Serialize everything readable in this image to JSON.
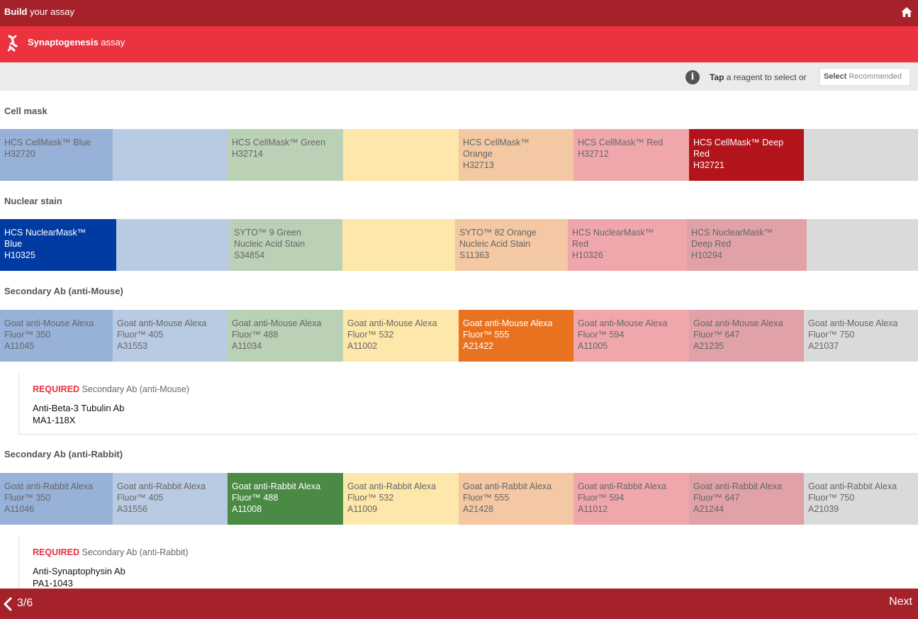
{
  "header": {
    "title_bold": "Build",
    "title_rest": "your assay",
    "home_icon": "home-icon"
  },
  "assay": {
    "icon": "dna-icon",
    "name_bold": "Synaptogenesis",
    "name_rest": "assay"
  },
  "instruction": {
    "icon": "info-icon",
    "info_glyph": "i",
    "tap_bold": "Tap",
    "tap_rest": "a reagent to select or",
    "select_bold": "Select",
    "select_rest": "Recommended"
  },
  "sections": [
    {
      "title": "Cell mask",
      "tiles": [
        {
          "lines": [
            "HCS CellMask™ Blue",
            "H32720"
          ],
          "color": "#97b1d8",
          "selected": false
        },
        {
          "lines": [],
          "color": "#b9cbe2",
          "selected": false
        },
        {
          "lines": [
            "HCS CellMask™ Green",
            "H32714"
          ],
          "color": "#bad1b5",
          "selected": false
        },
        {
          "lines": [],
          "color": "#fde7ab",
          "selected": false
        },
        {
          "lines": [
            "HCS CellMask™",
            "Orange",
            "H32713"
          ],
          "color": "#f3c8a2",
          "selected": false
        },
        {
          "lines": [
            "HCS CellMask™ Red",
            "H32712"
          ],
          "color": "#f0a7ac",
          "selected": false
        },
        {
          "lines": [
            "HCS CellMask™ Deep",
            "Red",
            "H32721"
          ],
          "color": "#b3141c",
          "selected": true
        },
        {
          "lines": [],
          "color": "#dadada",
          "selected": false
        }
      ]
    },
    {
      "title": "Nuclear stain",
      "tiles": [
        {
          "lines": [
            "HCS NuclearMask™",
            "Blue",
            "H10325"
          ],
          "color": "#003ba2",
          "selected": true
        },
        {
          "lines": [],
          "color": "#b9cbe2",
          "selected": false
        },
        {
          "lines": [
            "SYTO™ 9 Green",
            "Nucleic Acid Stain",
            "S34854"
          ],
          "color": "#bad1b5",
          "selected": false
        },
        {
          "lines": [],
          "color": "#fde7ab",
          "selected": false
        },
        {
          "lines": [
            "SYTO™ 82 Orange",
            "Nucleic Acid Stain",
            "S11363"
          ],
          "color": "#f3c8a2",
          "selected": false
        },
        {
          "lines": [
            "HCS NuclearMask™",
            "Red",
            "H10326"
          ],
          "color": "#f0a7ac",
          "selected": false
        },
        {
          "lines": [
            "HCS NuclearMask™",
            "Deep Red",
            "H10294"
          ],
          "color": "#e0a2a6",
          "selected": false
        },
        {
          "lines": [],
          "color": "#dadada",
          "selected": false
        }
      ]
    },
    {
      "title": "Secondary Ab (anti-Mouse)",
      "tiles": [
        {
          "lines": [
            "Goat anti-Mouse Alexa",
            "Fluor™ 350",
            "A11045"
          ],
          "color": "#97b1d8",
          "selected": false
        },
        {
          "lines": [
            "Goat anti-Mouse Alexa",
            "Fluor™ 405",
            "A31553"
          ],
          "color": "#b9cbe2",
          "selected": false
        },
        {
          "lines": [
            "Goat anti-Mouse Alexa",
            "Fluor™ 488",
            "A11034"
          ],
          "color": "#bad1b5",
          "selected": false
        },
        {
          "lines": [
            "Goat anti-Mouse Alexa",
            "Fluor™ 532",
            "A11002"
          ],
          "color": "#fde7ab",
          "selected": false
        },
        {
          "lines": [
            "Goat anti-Mouse Alexa",
            "Fluor™ 555",
            "A21422"
          ],
          "color": "#e97220",
          "selected": true
        },
        {
          "lines": [
            "Goat anti-Mouse Alexa",
            "Fluor™ 594",
            "A11005"
          ],
          "color": "#f0a7ac",
          "selected": false
        },
        {
          "lines": [
            "Goat anti-Mouse Alexa",
            "Fluor™ 647",
            "A21235"
          ],
          "color": "#e0a2a6",
          "selected": false
        },
        {
          "lines": [
            "Goat anti-Mouse Alexa",
            "Fluor™ 750",
            "A21037"
          ],
          "color": "#dadada",
          "selected": false
        }
      ]
    },
    {
      "title": "Secondary Ab (anti-Rabbit)",
      "tiles": [
        {
          "lines": [
            "Goat anti-Rabbit Alexa",
            "Fluor™ 350",
            "A11046"
          ],
          "color": "#97b1d8",
          "selected": false
        },
        {
          "lines": [
            "Goat anti-Rabbit Alexa",
            "Fluor™ 405",
            "A31556"
          ],
          "color": "#b9cbe2",
          "selected": false
        },
        {
          "lines": [
            "Goat anti-Rabbit Alexa",
            "Fluor™ 488",
            "A11008"
          ],
          "color": "#4a8a45",
          "selected": true
        },
        {
          "lines": [
            "Goat anti-Rabbit Alexa",
            "Fluor™ 532",
            "A11009"
          ],
          "color": "#fde7ab",
          "selected": false
        },
        {
          "lines": [
            "Goat anti-Rabbit Alexa",
            "Fluor™ 555",
            "A21428"
          ],
          "color": "#f3c8a2",
          "selected": false
        },
        {
          "lines": [
            "Goat anti-Rabbit Alexa",
            "Fluor™ 594",
            "A11012"
          ],
          "color": "#f0a7ac",
          "selected": false
        },
        {
          "lines": [
            "Goat anti-Rabbit Alexa",
            "Fluor™ 647",
            "A21244"
          ],
          "color": "#e0a2a6",
          "selected": false
        },
        {
          "lines": [
            "Goat anti-Rabbit Alexa",
            "Fluor™ 750",
            "A21039"
          ],
          "color": "#dadada",
          "selected": false
        }
      ]
    }
  ],
  "required": [
    {
      "label": "REQUIRED",
      "target": "Secondary Ab (anti-Mouse)",
      "ab_name": "Anti-Beta-3 Tubulin Ab",
      "ab_cat": "MA1-118X"
    },
    {
      "label": "REQUIRED",
      "target": "Secondary Ab (anti-Rabbit)",
      "ab_name": "Anti-Synaptophysin Ab",
      "ab_cat": "PA1-1043"
    }
  ],
  "footer": {
    "back_icon": "chevron-left-icon",
    "page": "3/6",
    "next": "Next"
  }
}
